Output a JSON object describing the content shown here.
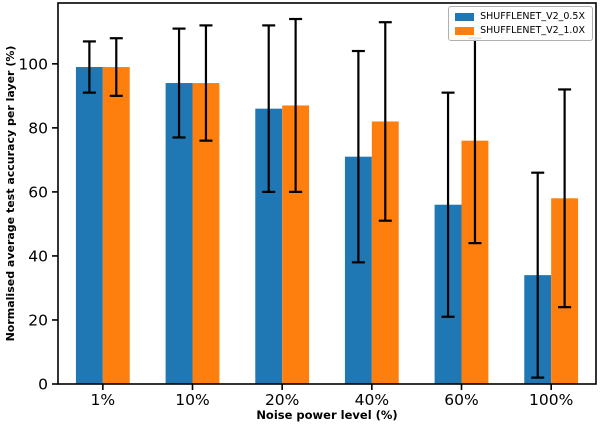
{
  "chart_data": {
    "type": "bar",
    "title": "",
    "xlabel": "Noise power level (%)",
    "ylabel": "Normalised average test accuracy per layer (%)",
    "categories": [
      "1%",
      "10%",
      "20%",
      "40%",
      "60%",
      "100%"
    ],
    "series": [
      {
        "name": "SHUFFLENET_V2_0.5X",
        "color": "#1f77b4",
        "values": [
          99,
          94,
          86,
          71,
          56,
          34
        ],
        "errors": [
          8,
          17,
          26,
          33,
          35,
          32
        ]
      },
      {
        "name": "SHUFFLENET_V2_1.0X",
        "color": "#ff7f0e",
        "values": [
          99,
          94,
          87,
          82,
          76,
          58
        ],
        "errors": [
          9,
          18,
          27,
          31,
          32,
          34
        ]
      }
    ],
    "yticks": [
      0,
      20,
      40,
      60,
      80,
      100
    ],
    "ylim": [
      0,
      119
    ],
    "grid": false,
    "legend_position": "upper right",
    "error_bar_color": "#000000",
    "axis_color": "#000000",
    "background_color": "#ffffff"
  }
}
